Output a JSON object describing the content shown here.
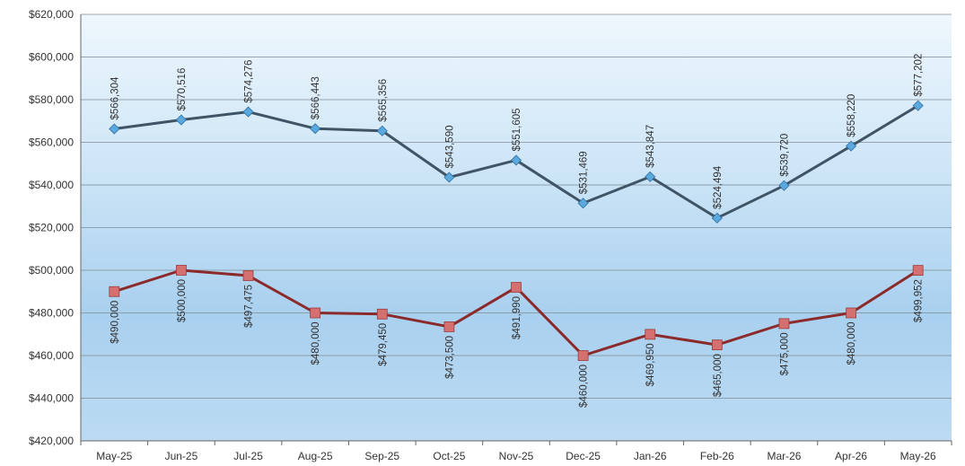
{
  "chart_data": {
    "type": "line",
    "title": "",
    "xlabel": "",
    "ylabel": "",
    "categories": [
      "May-25",
      "Jun-25",
      "Jul-25",
      "Aug-25",
      "Sep-25",
      "Oct-25",
      "Nov-25",
      "Dec-25",
      "Jan-26",
      "Feb-26",
      "Mar-26",
      "Apr-26",
      "May-26"
    ],
    "ylim": [
      420000,
      620000
    ],
    "ytick_values": [
      420000,
      440000,
      460000,
      480000,
      500000,
      520000,
      540000,
      560000,
      580000,
      600000,
      620000
    ],
    "ytick_labels": [
      "$420,000",
      "$440,000",
      "$460,000",
      "$480,000",
      "$500,000",
      "$520,000",
      "$540,000",
      "$560,000",
      "$580,000",
      "$600,000",
      "$620,000"
    ],
    "grid": true,
    "legend": "none",
    "series": [
      {
        "color": "#3f5566",
        "marker": "diamond",
        "marker_color": "#5aa8de",
        "label_position": "above",
        "values": [
          566304,
          570516,
          574276,
          566443,
          565356,
          543590,
          551605,
          531469,
          543847,
          524494,
          539720,
          558220,
          577202
        ],
        "labels": [
          "$566,304",
          "$570,516",
          "$574,276",
          "$566,443",
          "$565,356",
          "$543,590",
          "$551,605",
          "$531,469",
          "$543,847",
          "$524,494",
          "$539,720",
          "$558,220",
          "$577,202"
        ]
      },
      {
        "color": "#8b2a2a",
        "marker": "square",
        "marker_color": "#d47070",
        "label_position": "below",
        "values": [
          490000,
          500000,
          497475,
          480000,
          479450,
          473500,
          491990,
          460000,
          469950,
          465000,
          475000,
          480000,
          499952
        ],
        "labels": [
          "$490,000",
          "$500,000",
          "$497,475",
          "$480,000",
          "$479,450",
          "$473,500",
          "$491,990",
          "$460,000",
          "$469,950",
          "$465,000",
          "$475,000",
          "$480,000",
          "$499,952"
        ]
      }
    ]
  }
}
